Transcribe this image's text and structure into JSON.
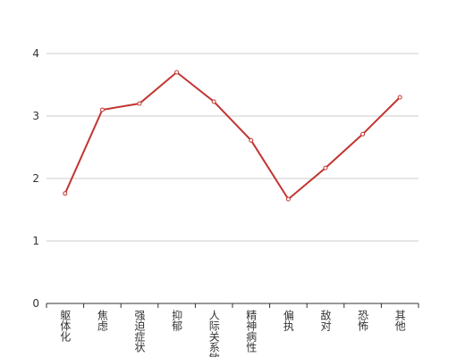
{
  "chart_data": {
    "type": "line",
    "categories": [
      "躯体化",
      "焦虑",
      "强迫症状",
      "抑郁",
      "人际关系敏感",
      "精神病性",
      "偏执",
      "敌对",
      "恐怖",
      "其他"
    ],
    "values": [
      1.76,
      3.1,
      3.2,
      3.7,
      3.23,
      2.61,
      1.67,
      2.17,
      2.71,
      3.3
    ],
    "color": "#c23531",
    "ylim": [
      0,
      4
    ],
    "yticks": [
      0,
      1,
      2,
      3,
      4
    ],
    "grid": true
  }
}
